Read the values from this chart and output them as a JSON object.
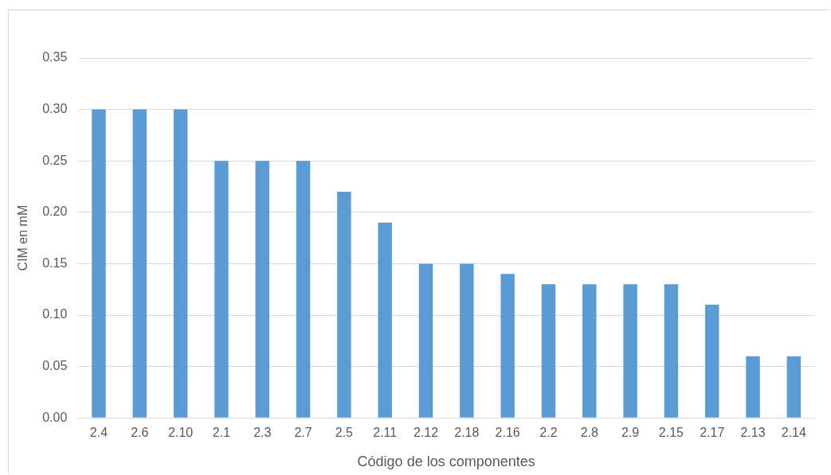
{
  "chart_data": {
    "type": "bar",
    "xlabel": "Código de los componentes",
    "ylabel": "CIM en mM",
    "categories": [
      "2.4",
      "2.6",
      "2.10",
      "2.1",
      "2.3",
      "2.7",
      "2.5",
      "2.11",
      "2.12",
      "2.18",
      "2.16",
      "2.2",
      "2.8",
      "2.9",
      "2.15",
      "2.17",
      "2.13",
      "2.14"
    ],
    "values": [
      0.3,
      0.3,
      0.3,
      0.25,
      0.25,
      0.25,
      0.22,
      0.19,
      0.15,
      0.15,
      0.14,
      0.13,
      0.13,
      0.13,
      0.13,
      0.11,
      0.06,
      0.06
    ],
    "color": "#5b9bd5",
    "ylim": [
      0,
      0.35
    ],
    "yticks": [
      {
        "value": 0,
        "label": "0.00"
      },
      {
        "value": 0.05,
        "label": "0.05"
      },
      {
        "value": 0.1,
        "label": "0.10"
      },
      {
        "value": 0.15,
        "label": "0.15"
      },
      {
        "value": 0.2,
        "label": "0.20"
      },
      {
        "value": 0.25,
        "label": "0.25"
      },
      {
        "value": 0.3,
        "label": "0.30"
      },
      {
        "value": 0.35,
        "label": "0.35"
      }
    ],
    "grid": "y",
    "legend": false
  }
}
